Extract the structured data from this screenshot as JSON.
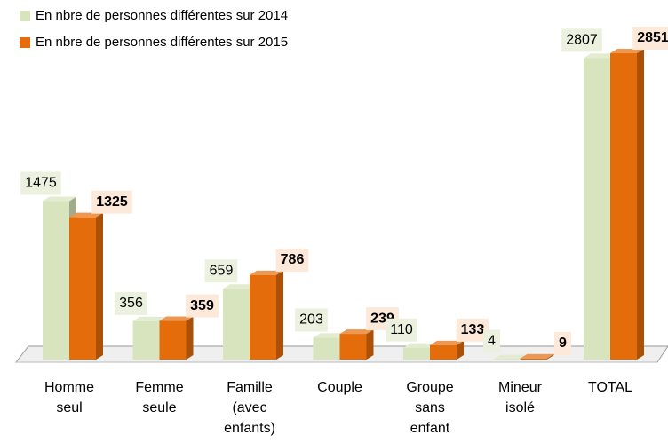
{
  "chart_data": {
    "type": "bar3d",
    "categories": [
      "Homme seul",
      "Femme seule",
      "Famille (avec enfants)",
      "Couple",
      "Groupe sans enfant",
      "Mineur isolé",
      "TOTAL"
    ],
    "series": [
      {
        "name": "En nbre de personnes différentes sur 2014",
        "color": "#d7e4bd",
        "values": [
          1475,
          356,
          659,
          203,
          110,
          4,
          2807
        ]
      },
      {
        "name": "En nbre de personnes différentes sur 2015",
        "color": "#e46c0a",
        "values": [
          1325,
          359,
          786,
          239,
          133,
          9,
          2851
        ]
      }
    ],
    "legend": "top-left"
  }
}
